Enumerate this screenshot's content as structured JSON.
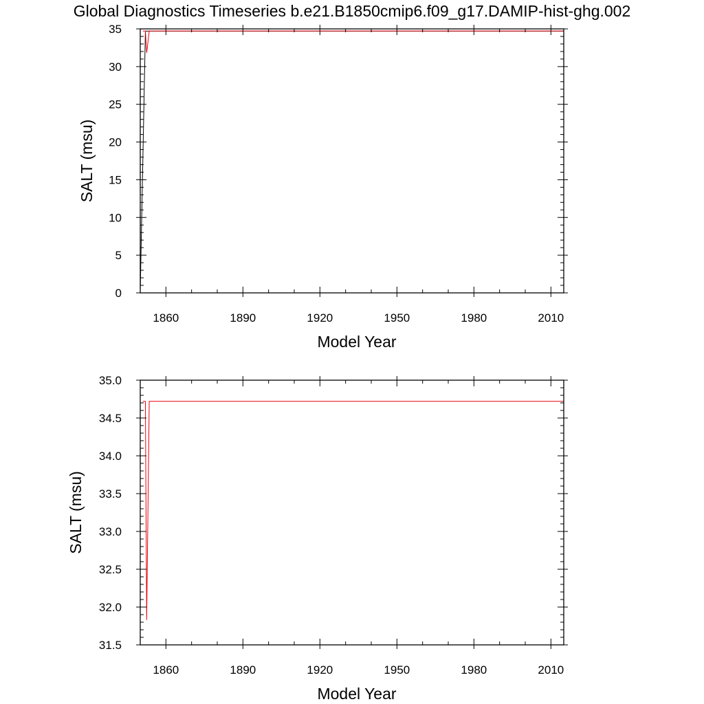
{
  "title": "Global Diagnostics Timeseries b.e21.B1850cmip6.f09_g17.DAMIP-hist-ghg.002",
  "colors": {
    "series_black": "#000000",
    "series_red": "#e8000b"
  },
  "chart_data": [
    {
      "type": "line",
      "xlabel": "Model Year",
      "ylabel": "SALT (msu)",
      "xlim": [
        1850,
        2015
      ],
      "ylim": [
        0,
        35
      ],
      "xticks": [
        1860,
        1890,
        1920,
        1950,
        1980,
        2010
      ],
      "xtick_labels": [
        "1860",
        "1890",
        "1920",
        "1950",
        "1980",
        "2010"
      ],
      "yticks": [
        0,
        5,
        10,
        15,
        20,
        25,
        30,
        35
      ],
      "ytick_labels": [
        "0",
        "5",
        "10",
        "15",
        "20",
        "25",
        "30",
        "35"
      ],
      "grid": false,
      "series": [
        {
          "color": "#000000",
          "x": [
            1850,
            1852,
            1853,
            2015
          ],
          "y": [
            0.2,
            34.7,
            34.7,
            34.7
          ]
        },
        {
          "color": "#e8000b",
          "x": [
            1851,
            1852,
            1852.5,
            1853.5,
            2015
          ],
          "y": [
            34.72,
            34.72,
            31.83,
            34.72,
            34.72
          ]
        }
      ]
    },
    {
      "type": "line",
      "xlabel": "Model Year",
      "ylabel": "SALT (msu)",
      "xlim": [
        1850,
        2015
      ],
      "ylim": [
        31.5,
        35.0
      ],
      "xticks": [
        1860,
        1890,
        1920,
        1950,
        1980,
        2010
      ],
      "xtick_labels": [
        "1860",
        "1890",
        "1920",
        "1950",
        "1980",
        "2010"
      ],
      "yticks": [
        31.5,
        32.0,
        32.5,
        33.0,
        33.5,
        34.0,
        34.5,
        35.0
      ],
      "ytick_labels": [
        "31.5",
        "32.0",
        "32.5",
        "33.0",
        "33.5",
        "34.0",
        "34.5",
        "35.0"
      ],
      "grid": false,
      "series": [
        {
          "color": "#e8000b",
          "x": [
            1851,
            1852,
            1852.5,
            1853.5,
            2015
          ],
          "y": [
            34.72,
            34.72,
            31.83,
            34.72,
            34.72
          ]
        }
      ]
    }
  ]
}
